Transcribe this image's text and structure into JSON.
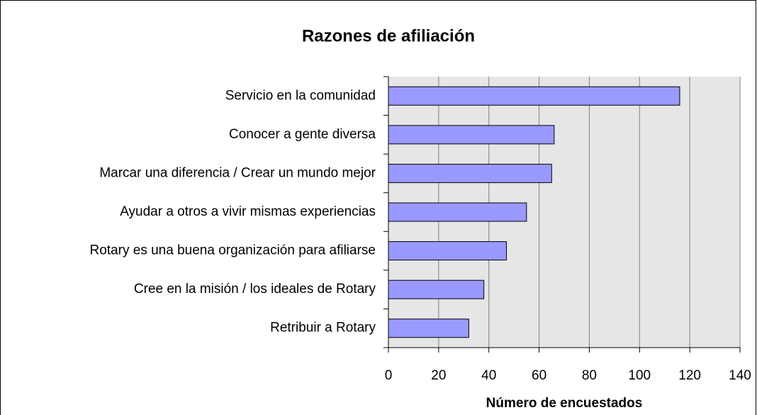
{
  "chart_data": {
    "type": "bar",
    "orientation": "horizontal",
    "title": "Razones de afiliación",
    "x_label": "Número de encuestados",
    "categories": [
      "Servicio en la comunidad",
      "Conocer a gente diversa",
      "Marcar una diferencia / Crear un mundo mejor",
      "Ayudar a otros a vivir mismas experiencias",
      "Rotary es una buena organización para afiliarse",
      "Cree en la misión / los ideales de Rotary",
      "Retribuir a Rotary"
    ],
    "values": [
      116,
      66,
      65,
      55,
      47,
      38,
      32
    ],
    "color": "#9999ff",
    "xlim": [
      0,
      140
    ],
    "xticks": [
      0,
      20,
      40,
      60,
      80,
      100,
      120,
      140
    ],
    "grid": true
  }
}
